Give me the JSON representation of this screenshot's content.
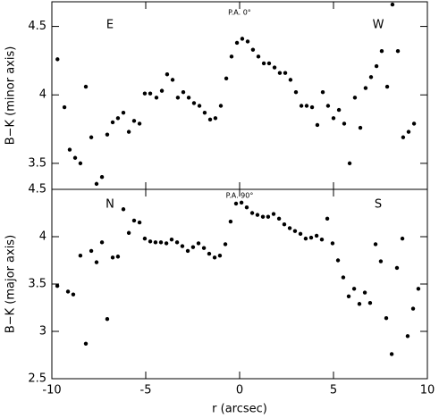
{
  "chart_data": [
    {
      "type": "scatter",
      "ylabel": "B−K (minor axis)",
      "annotations": [
        "E",
        "P.A. 0°",
        "W"
      ],
      "color": "#000000",
      "xlim": [
        -10,
        10
      ],
      "xticks": [
        -10,
        -5,
        0,
        5,
        10
      ],
      "ylim": [
        3.31,
        4.68
      ],
      "yticks": [
        3.5,
        4,
        4.5
      ],
      "x": [
        -9.7,
        -9.33,
        -9.05,
        -8.76,
        -8.48,
        -8.19,
        -7.9,
        -7.62,
        -7.33,
        -7.05,
        -6.76,
        -6.48,
        -6.19,
        -5.9,
        -5.62,
        -5.33,
        -5.05,
        -4.76,
        -4.43,
        -4.14,
        -3.86,
        -3.57,
        -3.29,
        -3.0,
        -2.71,
        -2.43,
        -2.14,
        -1.86,
        -1.57,
        -1.29,
        -1.0,
        -0.71,
        -0.43,
        -0.14,
        0.14,
        0.43,
        0.71,
        1.0,
        1.29,
        1.57,
        1.86,
        2.14,
        2.43,
        2.71,
        3.0,
        3.29,
        3.57,
        3.86,
        4.14,
        4.43,
        4.71,
        5.0,
        5.29,
        5.57,
        5.86,
        6.14,
        6.43,
        6.71,
        7.0,
        7.29,
        7.57,
        7.86,
        8.14,
        8.43,
        8.71,
        9.0,
        9.29
      ],
      "values": [
        4.26,
        3.91,
        3.6,
        3.54,
        3.5,
        4.06,
        3.69,
        3.35,
        3.4,
        3.71,
        3.8,
        3.83,
        3.87,
        3.73,
        3.81,
        3.79,
        4.01,
        4.01,
        3.98,
        4.03,
        4.15,
        4.11,
        3.98,
        4.02,
        3.98,
        3.94,
        3.92,
        3.87,
        3.82,
        3.83,
        3.92,
        4.12,
        4.28,
        4.38,
        4.41,
        4.39,
        4.33,
        4.28,
        4.23,
        4.23,
        4.2,
        4.16,
        4.16,
        4.11,
        4.02,
        3.92,
        3.92,
        3.91,
        3.78,
        4.02,
        3.92,
        3.83,
        3.89,
        3.79,
        3.5,
        3.98,
        3.76,
        4.05,
        4.13,
        4.21,
        4.32,
        4.06,
        4.66,
        4.32,
        3.69,
        3.73,
        3.79
      ]
    },
    {
      "type": "scatter",
      "ylabel": "B−K (major axis)",
      "xlabel": "r (arcsec)",
      "annotations": [
        "N",
        "P.A. 90°",
        "S"
      ],
      "color": "#000000",
      "xlim": [
        -10,
        10
      ],
      "xticks": [
        -10,
        -5,
        0,
        5,
        10
      ],
      "ylim": [
        2.5,
        4.5
      ],
      "yticks": [
        2.5,
        3,
        3.5,
        4,
        4.5
      ],
      "x": [
        -9.71,
        -9.14,
        -8.86,
        -8.48,
        -8.19,
        -7.9,
        -7.62,
        -7.33,
        -7.05,
        -6.76,
        -6.48,
        -6.19,
        -5.9,
        -5.62,
        -5.33,
        -5.05,
        -4.76,
        -4.48,
        -4.19,
        -3.9,
        -3.62,
        -3.33,
        -3.05,
        -2.76,
        -2.48,
        -2.19,
        -1.9,
        -1.62,
        -1.33,
        -1.05,
        -0.76,
        -0.48,
        -0.19,
        0.1,
        0.38,
        0.67,
        0.95,
        1.24,
        1.52,
        1.81,
        2.1,
        2.38,
        2.67,
        2.95,
        3.24,
        3.52,
        3.81,
        4.1,
        4.38,
        4.67,
        4.95,
        5.24,
        5.52,
        5.81,
        6.1,
        6.38,
        6.67,
        6.95,
        7.24,
        7.52,
        7.81,
        8.1,
        8.38,
        8.67,
        8.95,
        9.24,
        9.52
      ],
      "values": [
        3.48,
        3.42,
        3.39,
        3.8,
        2.87,
        3.85,
        3.73,
        3.94,
        3.13,
        3.78,
        3.79,
        4.29,
        4.04,
        4.17,
        4.15,
        3.98,
        3.95,
        3.94,
        3.94,
        3.93,
        3.97,
        3.94,
        3.9,
        3.85,
        3.89,
        3.93,
        3.88,
        3.82,
        3.78,
        3.8,
        3.92,
        4.16,
        4.35,
        4.36,
        4.31,
        4.25,
        4.23,
        4.21,
        4.21,
        4.24,
        4.19,
        4.13,
        4.09,
        4.06,
        4.03,
        3.98,
        3.99,
        4.01,
        3.97,
        4.19,
        3.93,
        3.75,
        3.57,
        3.37,
        3.45,
        3.29,
        3.41,
        3.3,
        3.92,
        3.74,
        3.14,
        2.76,
        3.67,
        3.98,
        2.95,
        3.24,
        3.45
      ]
    }
  ]
}
